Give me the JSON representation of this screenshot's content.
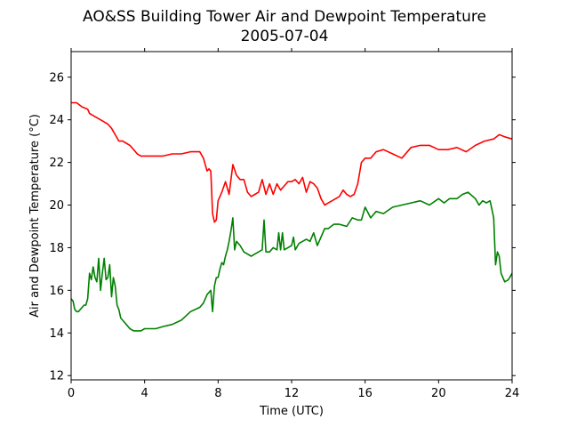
{
  "chart_data": {
    "type": "line",
    "title": "AO&SS Building Tower Air and Dewpoint Temperature",
    "subtitle": "2005-07-04",
    "xlabel": "Time (UTC)",
    "ylabel": "Air and Dewpoint Temperature (°C)",
    "xlim": [
      0,
      24
    ],
    "ylim": [
      11.8,
      27.2
    ],
    "xticks": [
      0,
      4,
      8,
      12,
      16,
      20,
      24
    ],
    "yticks": [
      12,
      14,
      16,
      18,
      20,
      22,
      24,
      26
    ],
    "grid": false,
    "legend": "none",
    "series": [
      {
        "color": "#ff0000",
        "x": [
          0,
          0.3,
          0.6,
          0.9,
          1.0,
          1.2,
          1.4,
          1.6,
          1.8,
          2.0,
          2.2,
          2.4,
          2.6,
          2.8,
          3.0,
          3.2,
          3.4,
          3.6,
          3.8,
          4.0,
          4.2,
          4.5,
          5.0,
          5.5,
          6.0,
          6.5,
          7.0,
          7.2,
          7.4,
          7.5,
          7.6,
          7.7,
          7.8,
          7.9,
          8.0,
          8.2,
          8.4,
          8.6,
          8.8,
          9.0,
          9.2,
          9.4,
          9.6,
          9.8,
          10.0,
          10.2,
          10.4,
          10.6,
          10.8,
          11.0,
          11.2,
          11.4,
          11.6,
          11.8,
          12.0,
          12.2,
          12.4,
          12.6,
          12.8,
          13.0,
          13.2,
          13.4,
          13.6,
          13.8,
          14.0,
          14.2,
          14.4,
          14.6,
          14.8,
          15.0,
          15.2,
          15.4,
          15.6,
          15.8,
          16.0,
          16.3,
          16.6,
          17.0,
          17.5,
          18.0,
          18.5,
          19.0,
          19.5,
          20.0,
          20.5,
          21.0,
          21.5,
          22.0,
          22.5,
          23.0,
          23.3,
          23.6,
          24.0
        ],
        "y": [
          24.8,
          24.8,
          24.6,
          24.5,
          24.3,
          24.2,
          24.1,
          24.0,
          23.9,
          23.8,
          23.6,
          23.3,
          23.0,
          23.0,
          22.9,
          22.8,
          22.6,
          22.4,
          22.3,
          22.3,
          22.3,
          22.3,
          22.3,
          22.4,
          22.4,
          22.5,
          22.5,
          22.2,
          21.6,
          21.7,
          21.6,
          19.6,
          19.2,
          19.3,
          20.2,
          20.6,
          21.1,
          20.5,
          21.9,
          21.4,
          21.2,
          21.2,
          20.6,
          20.4,
          20.5,
          20.6,
          21.2,
          20.5,
          21.0,
          20.5,
          21.0,
          20.7,
          20.9,
          21.1,
          21.1,
          21.2,
          21.0,
          21.3,
          20.6,
          21.1,
          21.0,
          20.8,
          20.3,
          20.0,
          20.1,
          20.2,
          20.3,
          20.4,
          20.7,
          20.5,
          20.4,
          20.5,
          21.0,
          22.0,
          22.2,
          22.2,
          22.5,
          22.6,
          22.4,
          22.2,
          22.7,
          22.8,
          22.8,
          22.6,
          22.6,
          22.7,
          22.5,
          22.8,
          23.0,
          23.1,
          23.3,
          23.2,
          23.1
        ]
      },
      {
        "color": "#008000",
        "x": [
          0,
          0.1,
          0.2,
          0.3,
          0.4,
          0.5,
          0.6,
          0.7,
          0.8,
          0.9,
          1.0,
          1.1,
          1.2,
          1.3,
          1.4,
          1.5,
          1.6,
          1.7,
          1.8,
          1.9,
          2.0,
          2.1,
          2.2,
          2.3,
          2.4,
          2.5,
          2.6,
          2.7,
          2.8,
          3.0,
          3.2,
          3.4,
          3.6,
          3.8,
          4.0,
          4.3,
          4.6,
          5.0,
          5.5,
          6.0,
          6.5,
          7.0,
          7.2,
          7.4,
          7.6,
          7.7,
          7.8,
          7.9,
          8.0,
          8.1,
          8.2,
          8.3,
          8.4,
          8.5,
          8.6,
          8.7,
          8.8,
          8.9,
          9.0,
          9.2,
          9.4,
          9.6,
          9.8,
          10.0,
          10.2,
          10.4,
          10.5,
          10.6,
          10.8,
          11.0,
          11.2,
          11.3,
          11.4,
          11.5,
          11.6,
          11.8,
          12.0,
          12.1,
          12.2,
          12.4,
          12.6,
          12.8,
          13.0,
          13.2,
          13.4,
          13.6,
          13.8,
          14.0,
          14.3,
          14.6,
          15.0,
          15.3,
          15.6,
          15.8,
          16.0,
          16.3,
          16.6,
          17.0,
          17.5,
          18.0,
          18.5,
          19.0,
          19.5,
          20.0,
          20.3,
          20.6,
          21.0,
          21.3,
          21.6,
          22.0,
          22.2,
          22.4,
          22.6,
          22.8,
          22.9,
          23.0,
          23.1,
          23.2,
          23.3,
          23.4,
          23.6,
          23.8,
          24.0
        ],
        "y": [
          15.6,
          15.5,
          15.1,
          15.0,
          15.0,
          15.1,
          15.2,
          15.3,
          15.3,
          15.6,
          16.8,
          16.5,
          17.1,
          16.6,
          16.4,
          17.5,
          16.0,
          16.8,
          17.5,
          16.5,
          16.6,
          17.2,
          15.7,
          16.6,
          16.2,
          15.3,
          15.1,
          14.7,
          14.6,
          14.4,
          14.2,
          14.1,
          14.1,
          14.1,
          14.2,
          14.2,
          14.2,
          14.3,
          14.4,
          14.6,
          15.0,
          15.2,
          15.4,
          15.8,
          16.0,
          15.0,
          16.2,
          16.6,
          16.6,
          17.0,
          17.3,
          17.2,
          17.6,
          17.9,
          18.3,
          18.8,
          19.4,
          17.9,
          18.3,
          18.1,
          17.8,
          17.7,
          17.6,
          17.7,
          17.8,
          17.9,
          19.3,
          17.8,
          17.8,
          18.0,
          17.9,
          18.7,
          17.9,
          18.7,
          17.9,
          18.0,
          18.1,
          18.5,
          17.9,
          18.2,
          18.3,
          18.4,
          18.3,
          18.7,
          18.1,
          18.5,
          18.9,
          18.9,
          19.1,
          19.1,
          19.0,
          19.4,
          19.3,
          19.3,
          19.9,
          19.4,
          19.7,
          19.6,
          19.9,
          20.0,
          20.1,
          20.2,
          20.0,
          20.3,
          20.1,
          20.3,
          20.3,
          20.5,
          20.6,
          20.3,
          20.0,
          20.2,
          20.1,
          20.2,
          19.8,
          19.4,
          17.2,
          17.8,
          17.6,
          16.8,
          16.4,
          16.5,
          16.8
        ]
      }
    ]
  }
}
